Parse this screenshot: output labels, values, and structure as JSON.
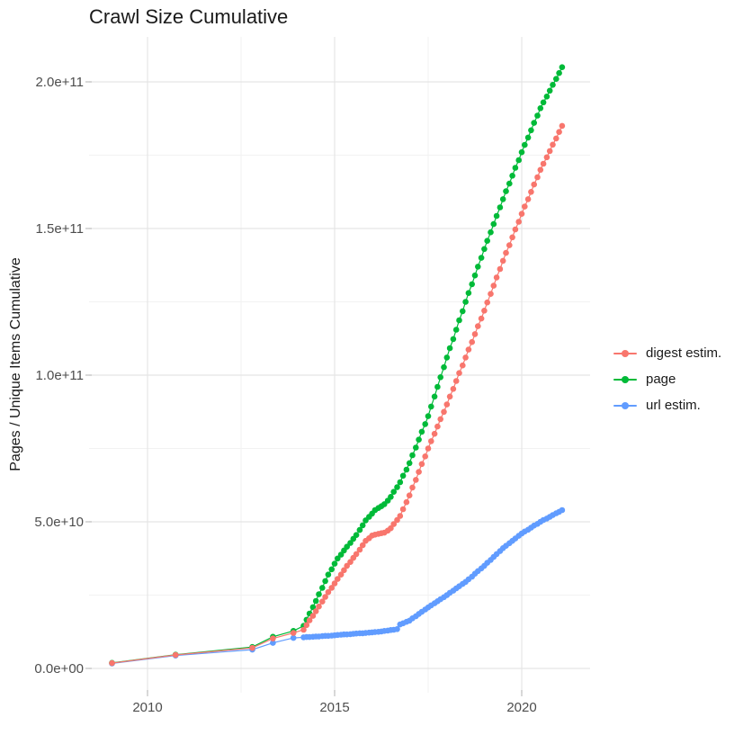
{
  "title": "Crawl Size Cumulative",
  "y_axis": {
    "label": "Pages / Unique Items Cumulative",
    "tick_labels": [
      "0.0e+00",
      "5.0e+10",
      "1.0e+11",
      "1.5e+11",
      "2.0e+11"
    ],
    "tick_values_e9": [
      0,
      50,
      100,
      150,
      200
    ],
    "minor_values_e9": [
      25,
      75,
      125,
      175
    ]
  },
  "x_axis": {
    "tick_labels": [
      "2010",
      "2015",
      "2020"
    ],
    "tick_values": [
      2010,
      2015,
      2020
    ],
    "minor_values": [
      2012.5,
      2017.5
    ]
  },
  "legend": {
    "items": [
      {
        "label": "digest estim.",
        "color": "#F8766D"
      },
      {
        "label": "page",
        "color": "#00BA38"
      },
      {
        "label": "url estim.",
        "color": "#619CFF"
      }
    ]
  },
  "colors": {
    "grid_major": "#e5e5e5",
    "grid_minor": "#f2f2f2",
    "tick_mark": "#b3b3b3",
    "tick_text": "#4d4d4d"
  },
  "chart_data": {
    "type": "line",
    "title": "Crawl Size Cumulative",
    "xlabel": "",
    "ylabel": "Pages / Unique Items Cumulative",
    "unit": "values are billions (1e9) of pages / unique items, cumulative",
    "x_range": [
      2008.45,
      2021.7
    ],
    "y_range_e9": [
      -10,
      215
    ],
    "grid": true,
    "legend_position": "right",
    "series": [
      {
        "name": "digest estim.",
        "color": "#F8766D",
        "points": [
          [
            2009.05,
            1.8
          ],
          [
            2010.75,
            4.6
          ],
          [
            2012.8,
            7.0
          ],
          [
            2013.35,
            10.2
          ],
          [
            2013.9,
            12.1
          ],
          [
            2014.17,
            13.2
          ],
          [
            2014.25,
            14.8
          ],
          [
            2014.33,
            16.4
          ],
          [
            2014.42,
            17.9
          ],
          [
            2014.5,
            19.5
          ],
          [
            2014.58,
            21.1
          ],
          [
            2014.67,
            22.8
          ],
          [
            2014.75,
            24.4
          ],
          [
            2014.83,
            26.0
          ],
          [
            2014.92,
            27.5
          ],
          [
            2015.0,
            29.0
          ],
          [
            2015.08,
            30.5
          ],
          [
            2015.17,
            32.0
          ],
          [
            2015.25,
            33.5
          ],
          [
            2015.33,
            35.0
          ],
          [
            2015.42,
            36.3
          ],
          [
            2015.5,
            37.7
          ],
          [
            2015.58,
            39.0
          ],
          [
            2015.67,
            40.5
          ],
          [
            2015.75,
            42.0
          ],
          [
            2015.83,
            43.5
          ],
          [
            2015.92,
            44.4
          ],
          [
            2016.0,
            45.3
          ],
          [
            2016.08,
            45.6
          ],
          [
            2016.17,
            45.9
          ],
          [
            2016.25,
            46.1
          ],
          [
            2016.33,
            46.3
          ],
          [
            2016.42,
            47.0
          ],
          [
            2016.5,
            47.8
          ],
          [
            2016.58,
            49.2
          ],
          [
            2016.67,
            50.6
          ],
          [
            2016.75,
            52.0
          ],
          [
            2016.83,
            54.3
          ],
          [
            2016.92,
            56.7
          ],
          [
            2017.0,
            59.0
          ],
          [
            2017.08,
            61.7
          ],
          [
            2017.17,
            64.3
          ],
          [
            2017.25,
            67.0
          ],
          [
            2017.33,
            69.7
          ],
          [
            2017.42,
            72.3
          ],
          [
            2017.5,
            75.0
          ],
          [
            2017.58,
            77.5
          ],
          [
            2017.67,
            80.0
          ],
          [
            2017.75,
            82.5
          ],
          [
            2017.83,
            85.0
          ],
          [
            2017.92,
            87.5
          ],
          [
            2018.0,
            90.0
          ],
          [
            2018.08,
            92.7
          ],
          [
            2018.17,
            95.3
          ],
          [
            2018.25,
            98.0
          ],
          [
            2018.33,
            100.7
          ],
          [
            2018.42,
            103.3
          ],
          [
            2018.5,
            106.0
          ],
          [
            2018.58,
            108.7
          ],
          [
            2018.67,
            111.3
          ],
          [
            2018.75,
            114.0
          ],
          [
            2018.83,
            116.7
          ],
          [
            2018.92,
            119.3
          ],
          [
            2019.0,
            122.0
          ],
          [
            2019.08,
            124.8
          ],
          [
            2019.17,
            127.7
          ],
          [
            2019.25,
            130.5
          ],
          [
            2019.33,
            133.3
          ],
          [
            2019.42,
            136.2
          ],
          [
            2019.5,
            139.0
          ],
          [
            2019.58,
            141.7
          ],
          [
            2019.67,
            144.3
          ],
          [
            2019.75,
            147.0
          ],
          [
            2019.83,
            149.7
          ],
          [
            2019.92,
            152.3
          ],
          [
            2020.0,
            155.0
          ],
          [
            2020.08,
            157.5
          ],
          [
            2020.17,
            160.0
          ],
          [
            2020.25,
            162.5
          ],
          [
            2020.33,
            165.0
          ],
          [
            2020.42,
            167.5
          ],
          [
            2020.5,
            170.0
          ],
          [
            2020.58,
            172.1
          ],
          [
            2020.67,
            174.3
          ],
          [
            2020.75,
            176.4
          ],
          [
            2020.83,
            178.6
          ],
          [
            2020.92,
            180.7
          ],
          [
            2021.0,
            182.9
          ],
          [
            2021.08,
            185.0
          ]
        ]
      },
      {
        "name": "page",
        "color": "#00BA38",
        "points": [
          [
            2009.05,
            1.9
          ],
          [
            2010.75,
            4.7
          ],
          [
            2012.8,
            7.3
          ],
          [
            2013.35,
            10.8
          ],
          [
            2013.9,
            12.8
          ],
          [
            2014.17,
            14.5
          ],
          [
            2014.25,
            16.6
          ],
          [
            2014.33,
            18.7
          ],
          [
            2014.42,
            20.9
          ],
          [
            2014.5,
            23.0
          ],
          [
            2014.58,
            25.3
          ],
          [
            2014.67,
            27.5
          ],
          [
            2014.75,
            29.8
          ],
          [
            2014.83,
            32.0
          ],
          [
            2014.92,
            33.8
          ],
          [
            2015.0,
            35.7
          ],
          [
            2015.08,
            37.5
          ],
          [
            2015.17,
            38.8
          ],
          [
            2015.25,
            40.2
          ],
          [
            2015.33,
            41.5
          ],
          [
            2015.42,
            42.8
          ],
          [
            2015.5,
            44.2
          ],
          [
            2015.58,
            45.5
          ],
          [
            2015.67,
            47.2
          ],
          [
            2015.75,
            48.8
          ],
          [
            2015.83,
            50.5
          ],
          [
            2015.92,
            51.7
          ],
          [
            2016.0,
            52.8
          ],
          [
            2016.08,
            54.0
          ],
          [
            2016.17,
            54.7
          ],
          [
            2016.25,
            55.3
          ],
          [
            2016.33,
            56.0
          ],
          [
            2016.42,
            57.2
          ],
          [
            2016.5,
            58.5
          ],
          [
            2016.58,
            60.2
          ],
          [
            2016.67,
            61.8
          ],
          [
            2016.75,
            63.5
          ],
          [
            2016.83,
            65.7
          ],
          [
            2016.92,
            67.8
          ],
          [
            2017.0,
            70.0
          ],
          [
            2017.08,
            72.7
          ],
          [
            2017.17,
            75.3
          ],
          [
            2017.25,
            78.0
          ],
          [
            2017.33,
            80.7
          ],
          [
            2017.42,
            83.3
          ],
          [
            2017.5,
            86.0
          ],
          [
            2017.58,
            89.3
          ],
          [
            2017.67,
            92.7
          ],
          [
            2017.75,
            96.0
          ],
          [
            2017.83,
            99.3
          ],
          [
            2017.92,
            102.7
          ],
          [
            2018.0,
            106.0
          ],
          [
            2018.08,
            109.2
          ],
          [
            2018.17,
            112.3
          ],
          [
            2018.25,
            115.5
          ],
          [
            2018.33,
            118.7
          ],
          [
            2018.42,
            121.8
          ],
          [
            2018.5,
            125.0
          ],
          [
            2018.58,
            128.0
          ],
          [
            2018.67,
            131.0
          ],
          [
            2018.75,
            134.0
          ],
          [
            2018.83,
            137.0
          ],
          [
            2018.92,
            140.0
          ],
          [
            2019.0,
            143.0
          ],
          [
            2019.08,
            145.8
          ],
          [
            2019.17,
            148.7
          ],
          [
            2019.25,
            151.5
          ],
          [
            2019.33,
            154.3
          ],
          [
            2019.42,
            157.2
          ],
          [
            2019.5,
            160.0
          ],
          [
            2019.58,
            162.7
          ],
          [
            2019.67,
            165.3
          ],
          [
            2019.75,
            168.0
          ],
          [
            2019.83,
            170.7
          ],
          [
            2019.92,
            173.3
          ],
          [
            2020.0,
            176.0
          ],
          [
            2020.08,
            178.5
          ],
          [
            2020.17,
            181.0
          ],
          [
            2020.25,
            183.5
          ],
          [
            2020.33,
            186.0
          ],
          [
            2020.42,
            188.5
          ],
          [
            2020.5,
            191.0
          ],
          [
            2020.58,
            193.0
          ],
          [
            2020.67,
            195.0
          ],
          [
            2020.75,
            197.0
          ],
          [
            2020.83,
            199.0
          ],
          [
            2020.92,
            201.0
          ],
          [
            2021.0,
            203.0
          ],
          [
            2021.08,
            205.0
          ]
        ]
      },
      {
        "name": "url estim.",
        "color": "#619CFF",
        "points": [
          [
            2009.05,
            1.7
          ],
          [
            2010.75,
            4.4
          ],
          [
            2012.8,
            6.4
          ],
          [
            2013.35,
            8.7
          ],
          [
            2013.9,
            10.4
          ],
          [
            2014.17,
            10.6
          ],
          [
            2014.25,
            10.7
          ],
          [
            2014.33,
            10.7
          ],
          [
            2014.42,
            10.8
          ],
          [
            2014.5,
            10.9
          ],
          [
            2014.58,
            10.9
          ],
          [
            2014.67,
            11.0
          ],
          [
            2014.75,
            11.1
          ],
          [
            2014.83,
            11.1
          ],
          [
            2014.92,
            11.2
          ],
          [
            2015.0,
            11.3
          ],
          [
            2015.08,
            11.4
          ],
          [
            2015.17,
            11.5
          ],
          [
            2015.25,
            11.6
          ],
          [
            2015.33,
            11.6
          ],
          [
            2015.42,
            11.7
          ],
          [
            2015.5,
            11.8
          ],
          [
            2015.58,
            11.9
          ],
          [
            2015.67,
            12.0
          ],
          [
            2015.75,
            12.0
          ],
          [
            2015.83,
            12.1
          ],
          [
            2015.92,
            12.2
          ],
          [
            2016.0,
            12.3
          ],
          [
            2016.08,
            12.4
          ],
          [
            2016.17,
            12.5
          ],
          [
            2016.25,
            12.6
          ],
          [
            2016.33,
            12.8
          ],
          [
            2016.42,
            12.9
          ],
          [
            2016.5,
            13.1
          ],
          [
            2016.58,
            13.2
          ],
          [
            2016.67,
            13.4
          ],
          [
            2016.75,
            15.0
          ],
          [
            2016.83,
            15.4
          ],
          [
            2016.92,
            15.9
          ],
          [
            2017.0,
            16.3
          ],
          [
            2017.08,
            17.1
          ],
          [
            2017.17,
            17.8
          ],
          [
            2017.25,
            18.6
          ],
          [
            2017.33,
            19.3
          ],
          [
            2017.42,
            20.1
          ],
          [
            2017.5,
            20.8
          ],
          [
            2017.58,
            21.5
          ],
          [
            2017.67,
            22.2
          ],
          [
            2017.75,
            22.9
          ],
          [
            2017.83,
            23.6
          ],
          [
            2017.92,
            24.3
          ],
          [
            2018.0,
            25.0
          ],
          [
            2018.08,
            25.8
          ],
          [
            2018.17,
            26.5
          ],
          [
            2018.25,
            27.3
          ],
          [
            2018.33,
            28.0
          ],
          [
            2018.42,
            28.8
          ],
          [
            2018.5,
            29.5
          ],
          [
            2018.58,
            30.4
          ],
          [
            2018.67,
            31.3
          ],
          [
            2018.75,
            32.3
          ],
          [
            2018.83,
            33.2
          ],
          [
            2018.92,
            34.1
          ],
          [
            2019.0,
            35.0
          ],
          [
            2019.08,
            36.0
          ],
          [
            2019.17,
            37.0
          ],
          [
            2019.25,
            38.0
          ],
          [
            2019.33,
            39.0
          ],
          [
            2019.42,
            40.0
          ],
          [
            2019.5,
            41.0
          ],
          [
            2019.58,
            41.8
          ],
          [
            2019.67,
            42.7
          ],
          [
            2019.75,
            43.5
          ],
          [
            2019.83,
            44.3
          ],
          [
            2019.92,
            45.2
          ],
          [
            2020.0,
            46.0
          ],
          [
            2020.08,
            46.7
          ],
          [
            2020.17,
            47.3
          ],
          [
            2020.25,
            48.0
          ],
          [
            2020.33,
            48.7
          ],
          [
            2020.42,
            49.3
          ],
          [
            2020.5,
            50.0
          ],
          [
            2020.58,
            50.6
          ],
          [
            2020.67,
            51.1
          ],
          [
            2020.75,
            51.7
          ],
          [
            2020.83,
            52.3
          ],
          [
            2020.92,
            52.9
          ],
          [
            2021.0,
            53.4
          ],
          [
            2021.08,
            54.0
          ]
        ]
      }
    ]
  }
}
